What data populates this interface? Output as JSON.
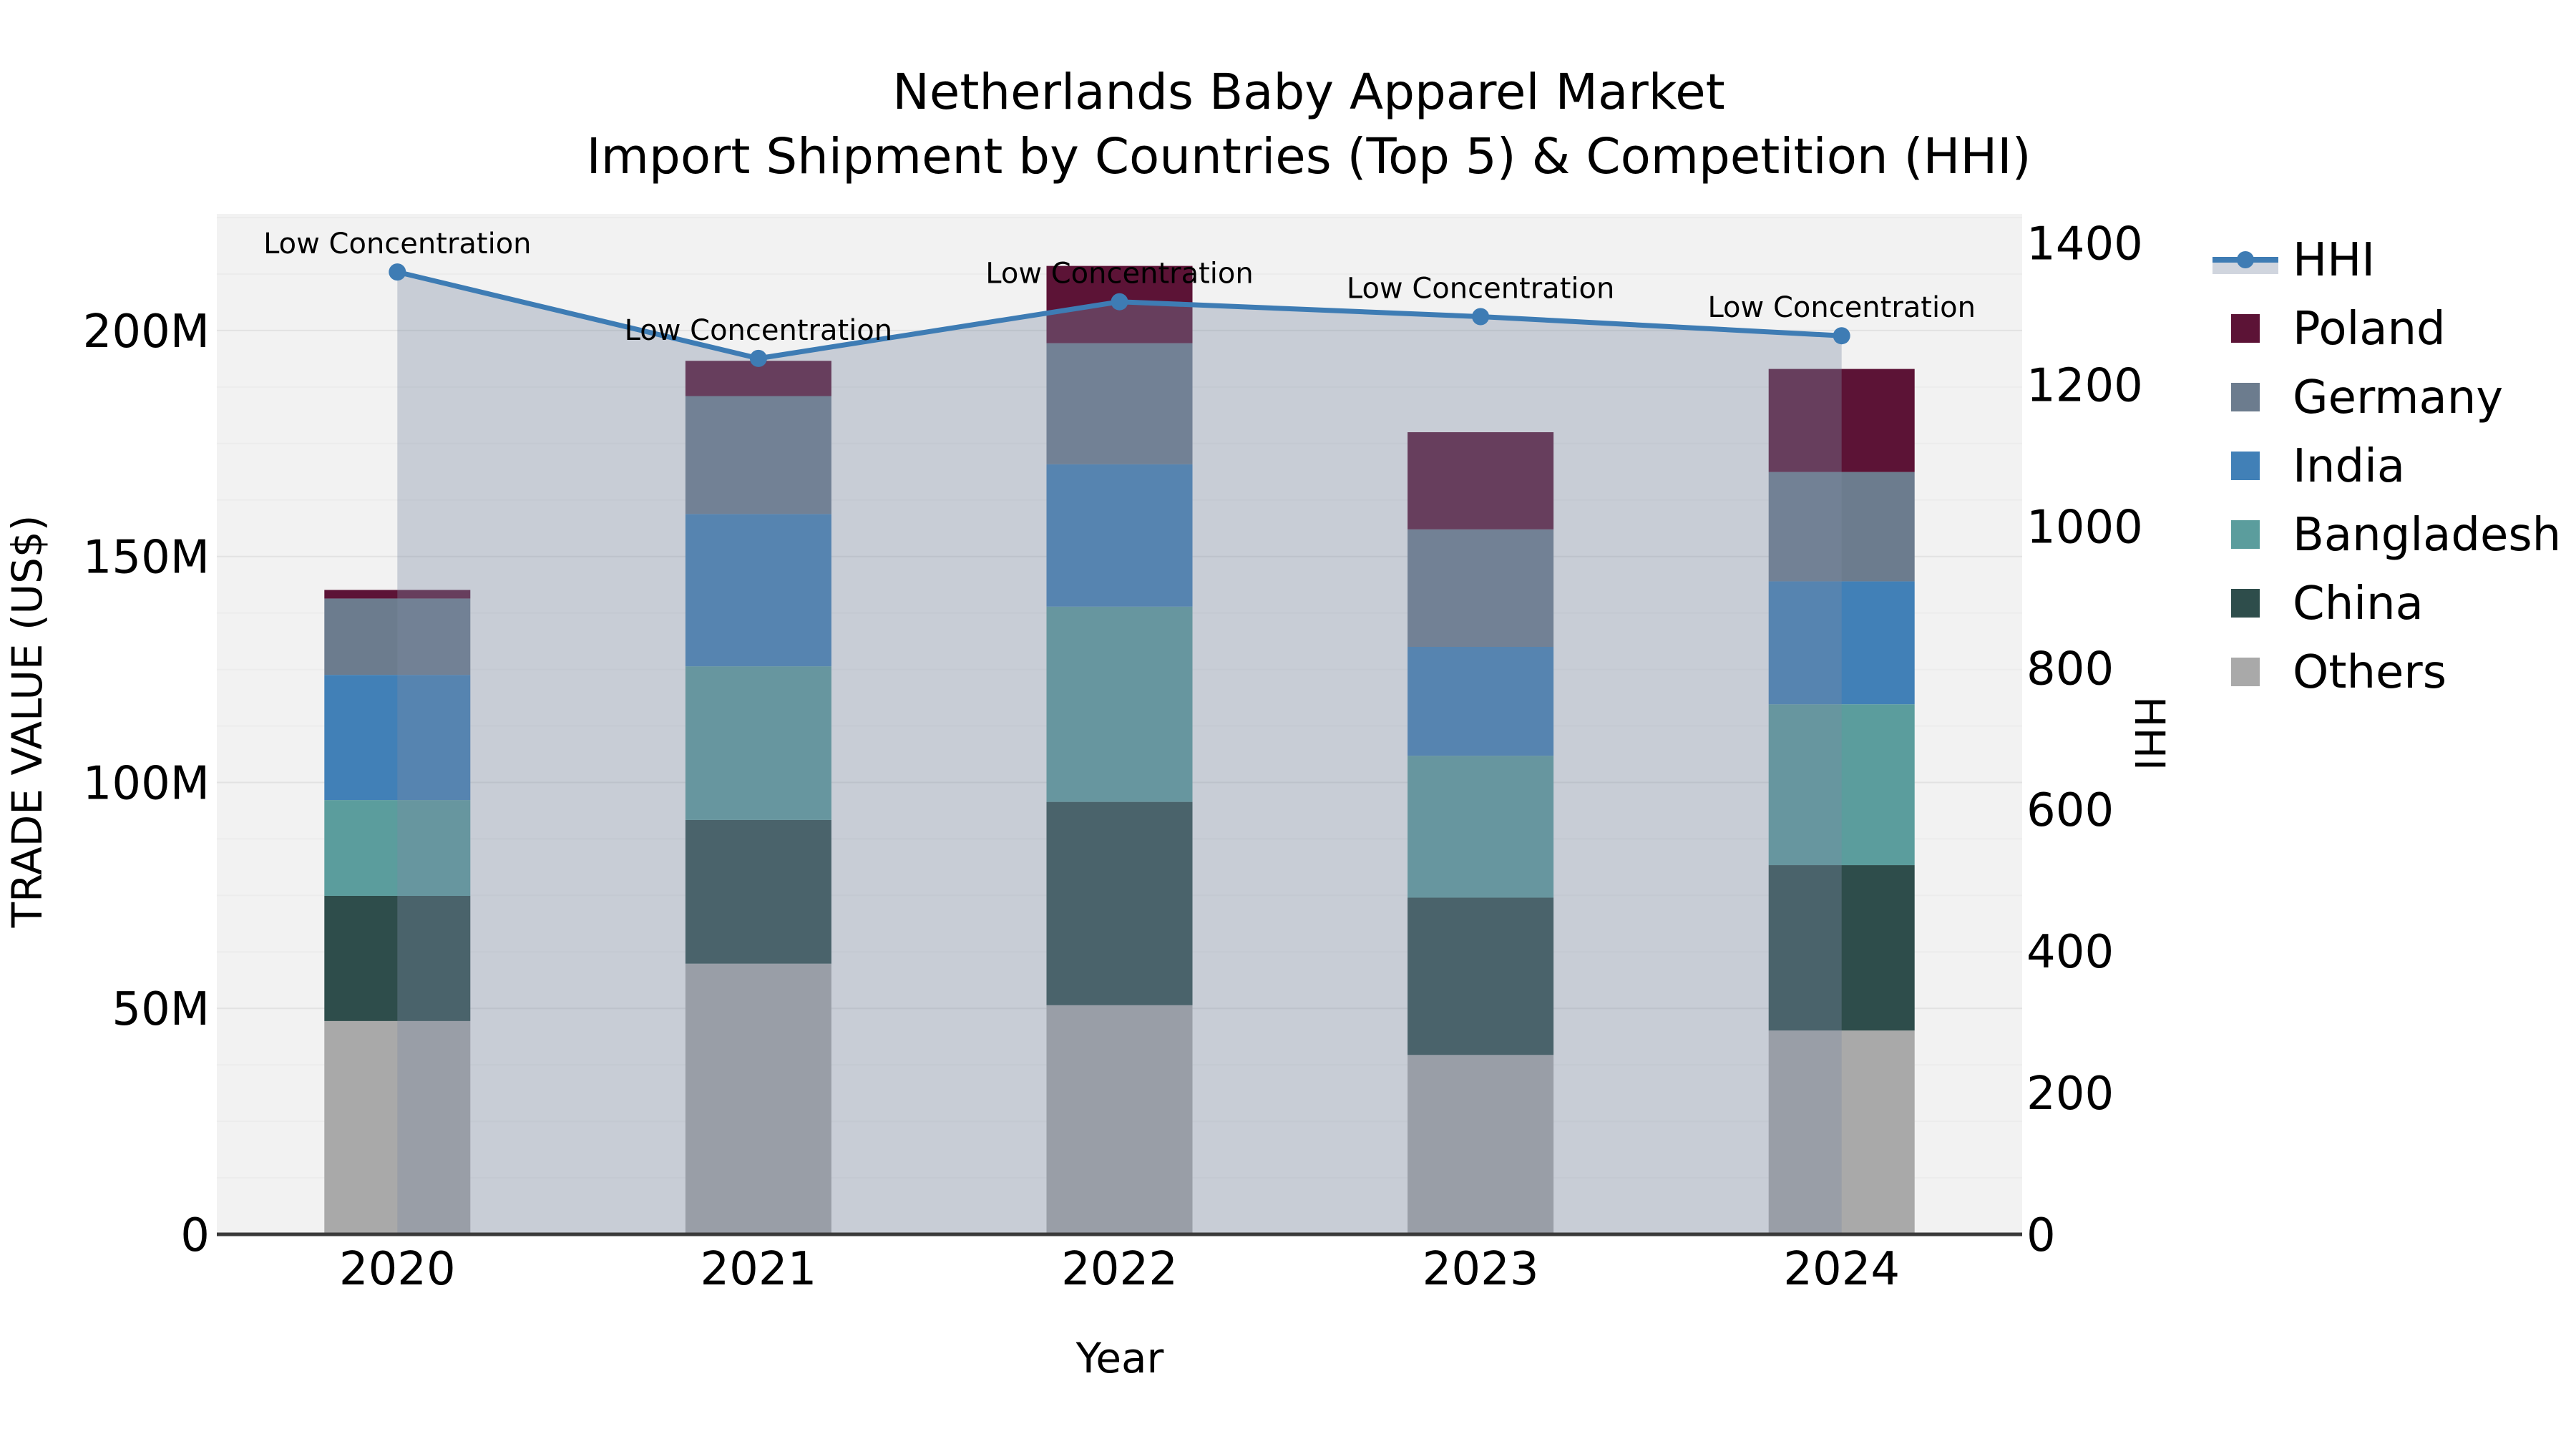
{
  "figure": {
    "title_line1": "Netherlands Baby Apparel Market",
    "title_line2": "Import Shipment by Countries (Top 5) & Competition (HHI)"
  },
  "chart_data": {
    "type": "bar",
    "subtype": "stacked-bars-with-hhi-line-and-area",
    "title": "Netherlands Baby Apparel Market — Import Shipment by Countries (Top 5) & Competition (HHI)",
    "categories": [
      "2020",
      "2021",
      "2022",
      "2023",
      "2024"
    ],
    "stack_order_bottom_to_top": [
      "Others",
      "China",
      "Bangladesh",
      "India",
      "Germany",
      "Poland"
    ],
    "series": [
      {
        "name": "Others",
        "color": "#A9A9A9",
        "values": [
          47.2,
          59.9,
          50.7,
          39.7,
          45.1
        ]
      },
      {
        "name": "China",
        "color": "#2E4D4B",
        "values": [
          27.7,
          31.8,
          45.0,
          34.8,
          36.6
        ]
      },
      {
        "name": "Bangladesh",
        "color": "#5B9D9D",
        "values": [
          21.2,
          34.0,
          43.2,
          31.4,
          35.6
        ]
      },
      {
        "name": "India",
        "color": "#4180B7",
        "values": [
          27.7,
          33.7,
          31.5,
          24.1,
          27.2
        ]
      },
      {
        "name": "Germany",
        "color": "#6C7C8E",
        "values": [
          16.9,
          26.1,
          26.8,
          26.0,
          24.2
        ]
      },
      {
        "name": "Poland",
        "color": "#5C1336",
        "values": [
          1.9,
          7.8,
          17.1,
          21.5,
          22.8
        ]
      }
    ],
    "bar_totals": [
      142.6,
      193.3,
      214.3,
      177.5,
      191.5
    ],
    "value_unit": "M US$",
    "line_series": {
      "name": "HHI",
      "color": "#3E7CB4",
      "area_fill": "rgba(124,138,164,0.36)",
      "values": [
        1359,
        1237,
        1317,
        1296,
        1269
      ]
    },
    "annotations": [
      "Low Concentration",
      "Low Concentration",
      "Low Concentration",
      "Low Concentration",
      "Low Concentration"
    ],
    "axes": {
      "left": {
        "title": "TRADE VALUE (US$)",
        "max": 225.8,
        "ticks": [
          {
            "value": 0,
            "label": "0"
          },
          {
            "value": 50,
            "label": "50M"
          },
          {
            "value": 100,
            "label": "100M"
          },
          {
            "value": 150,
            "label": "150M"
          },
          {
            "value": 200,
            "label": "200M"
          }
        ]
      },
      "right": {
        "title": "HHI",
        "max": 1441,
        "ticks": [
          {
            "value": 0,
            "label": "0"
          },
          {
            "value": 200,
            "label": "200"
          },
          {
            "value": 400,
            "label": "400"
          },
          {
            "value": 600,
            "label": "600"
          },
          {
            "value": 800,
            "label": "800"
          },
          {
            "value": 1000,
            "label": "1000"
          },
          {
            "value": 1200,
            "label": "1200"
          },
          {
            "value": 1400,
            "label": "1400"
          }
        ]
      },
      "x": {
        "title": "Year"
      }
    },
    "legend": {
      "position": "right",
      "items": [
        "HHI",
        "Poland",
        "Germany",
        "India",
        "Bangladesh",
        "China",
        "Others"
      ]
    },
    "grid": {
      "minor_step": 12.5,
      "major_step": 50
    },
    "colors": {
      "plot_background": "#F2F2F2",
      "grid_minor": "#ECECEC",
      "grid_major": "#E2E2E2",
      "spine": "#3A3A3A",
      "text": "#000000"
    }
  }
}
